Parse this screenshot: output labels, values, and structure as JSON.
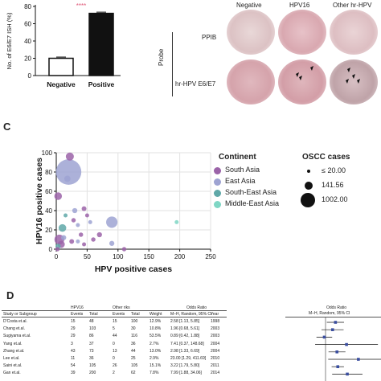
{
  "panelA": {
    "ylabel": "No. of E6/E7 ISH  (%)",
    "yticks": [
      "0",
      "20",
      "40",
      "60",
      "80"
    ],
    "categories": [
      "Negative",
      "Positive"
    ],
    "sig_marks": "****"
  },
  "panelB": {
    "columns": [
      "Negative",
      "HPV16",
      "Other hr-HPV"
    ],
    "rows": [
      "PPIB",
      "hr-HPV E6/E7"
    ],
    "probe_label": "Probe"
  },
  "panelC": {
    "letter": "C",
    "xlabel": "HPV positive cases",
    "ylabel": "HPV16 positive cases",
    "xticks": [
      "0",
      "50",
      "100",
      "150",
      "200",
      "250"
    ],
    "yticks": [
      "0",
      "20",
      "40",
      "60",
      "80",
      "100"
    ],
    "legend_title": "Continent",
    "legend_items": [
      {
        "label": "South Asia",
        "color": "#9b63a8"
      },
      {
        "label": "East Asia",
        "color": "#9ea3d2"
      },
      {
        "label": "South-East Asia",
        "color": "#5fa8a8"
      },
      {
        "label": "Middle-East Asia",
        "color": "#7fd6c4"
      }
    ],
    "size_title": "OSCC cases",
    "size_items": [
      "≤ 20.00",
      "141.56",
      "1002.00"
    ]
  },
  "panelD": {
    "letter": "D",
    "group1": "HPV16",
    "group2": "Other riks",
    "or_title": "Odds Ratio",
    "or_sub": "M–H, Random, 95% CI",
    "headers": [
      "Study or Subgroup",
      "Events",
      "Total",
      "Events",
      "Total",
      "Weight",
      "M–H, Random, 95% CI",
      "Year"
    ],
    "rows": [
      [
        "D'Costa et.al.",
        "15",
        "48",
        "15",
        "100",
        "12.9%",
        "2.58 [1.13, 5.85]",
        "1998"
      ],
      [
        "Chang et.al.",
        "29",
        "103",
        "5",
        "30",
        "10.8%",
        "1.96 [0.68, 5.61]",
        "2003"
      ],
      [
        "Sugiyama et.al.",
        "29",
        "86",
        "44",
        "116",
        "53.5%",
        "0.89 [0.42, 1.88]",
        "2003"
      ],
      [
        "Yang et.al.",
        "3",
        "37",
        "0",
        "36",
        "2.7%",
        "7.41 [0.37, 148.68]",
        "2004"
      ],
      [
        "Zhang et.al.",
        "43",
        "73",
        "13",
        "44",
        "13.0%",
        "2.98 [1.33, 6.69]",
        "2004"
      ],
      [
        "Lee et.al.",
        "11",
        "36",
        "0",
        "25",
        "2.9%",
        "23.00 [1.29, 411.69]",
        "2010"
      ],
      [
        "Saini et.al.",
        "54",
        "105",
        "26",
        "105",
        "15.1%",
        "3.22 [1.79, 5.80]",
        "2011"
      ],
      [
        "Gan et.al.",
        "39",
        "200",
        "2",
        "62",
        "7.8%",
        "7.99 [1.88, 34.06]",
        "2014"
      ]
    ]
  },
  "chart_data": [
    {
      "type": "bar",
      "categories": [
        "Negative",
        "Positive"
      ],
      "values": [
        20,
        72
      ],
      "ylabel": "No. of E6/E7 ISH  (%)",
      "ylim": [
        0,
        80
      ]
    },
    {
      "type": "scatter",
      "xlabel": "HPV positive cases",
      "ylabel": "HPV16 positive cases",
      "xlim": [
        0,
        250
      ],
      "ylim": [
        0,
        100
      ],
      "legend": "right",
      "grid": true,
      "points": [
        {
          "x": 20,
          "y": 80,
          "size": 1002,
          "group": "East Asia"
        },
        {
          "x": 22,
          "y": 96,
          "size": 100,
          "group": "South Asia"
        },
        {
          "x": 18,
          "y": 73,
          "size": 60,
          "group": "East Asia"
        },
        {
          "x": 3,
          "y": 55,
          "size": 90,
          "group": "South Asia"
        },
        {
          "x": 90,
          "y": 28,
          "size": 200,
          "group": "East Asia"
        },
        {
          "x": 195,
          "y": 28,
          "size": 20,
          "group": "Middle-East Asia"
        },
        {
          "x": 30,
          "y": 40,
          "size": 40,
          "group": "East Asia"
        },
        {
          "x": 45,
          "y": 42,
          "size": 35,
          "group": "South Asia"
        },
        {
          "x": 10,
          "y": 22,
          "size": 90,
          "group": "South-East Asia"
        },
        {
          "x": 28,
          "y": 30,
          "size": 30,
          "group": "South Asia"
        },
        {
          "x": 35,
          "y": 25,
          "size": 25,
          "group": "East Asia"
        },
        {
          "x": 15,
          "y": 35,
          "size": 25,
          "group": "South-East Asia"
        },
        {
          "x": 50,
          "y": 35,
          "size": 25,
          "group": "South Asia"
        },
        {
          "x": 55,
          "y": 28,
          "size": 25,
          "group": "East Asia"
        },
        {
          "x": 40,
          "y": 15,
          "size": 30,
          "group": "South Asia"
        },
        {
          "x": 70,
          "y": 15,
          "size": 40,
          "group": "South Asia"
        },
        {
          "x": 5,
          "y": 10,
          "size": 150,
          "group": "South Asia"
        },
        {
          "x": 8,
          "y": 5,
          "size": 80,
          "group": "South Asia"
        },
        {
          "x": 12,
          "y": 12,
          "size": 40,
          "group": "East Asia"
        },
        {
          "x": 25,
          "y": 8,
          "size": 35,
          "group": "South Asia"
        },
        {
          "x": 3,
          "y": 3,
          "size": 40,
          "group": "South-East Asia"
        },
        {
          "x": 60,
          "y": 10,
          "size": 30,
          "group": "South Asia"
        },
        {
          "x": 90,
          "y": 6,
          "size": 40,
          "group": "East Asia"
        },
        {
          "x": 110,
          "y": 0,
          "size": 30,
          "group": "South Asia"
        },
        {
          "x": 2,
          "y": 0,
          "size": 30,
          "group": "South Asia"
        },
        {
          "x": 35,
          "y": 8,
          "size": 25,
          "group": "East Asia"
        },
        {
          "x": 45,
          "y": 5,
          "size": 25,
          "group": "South Asia"
        }
      ]
    }
  ]
}
